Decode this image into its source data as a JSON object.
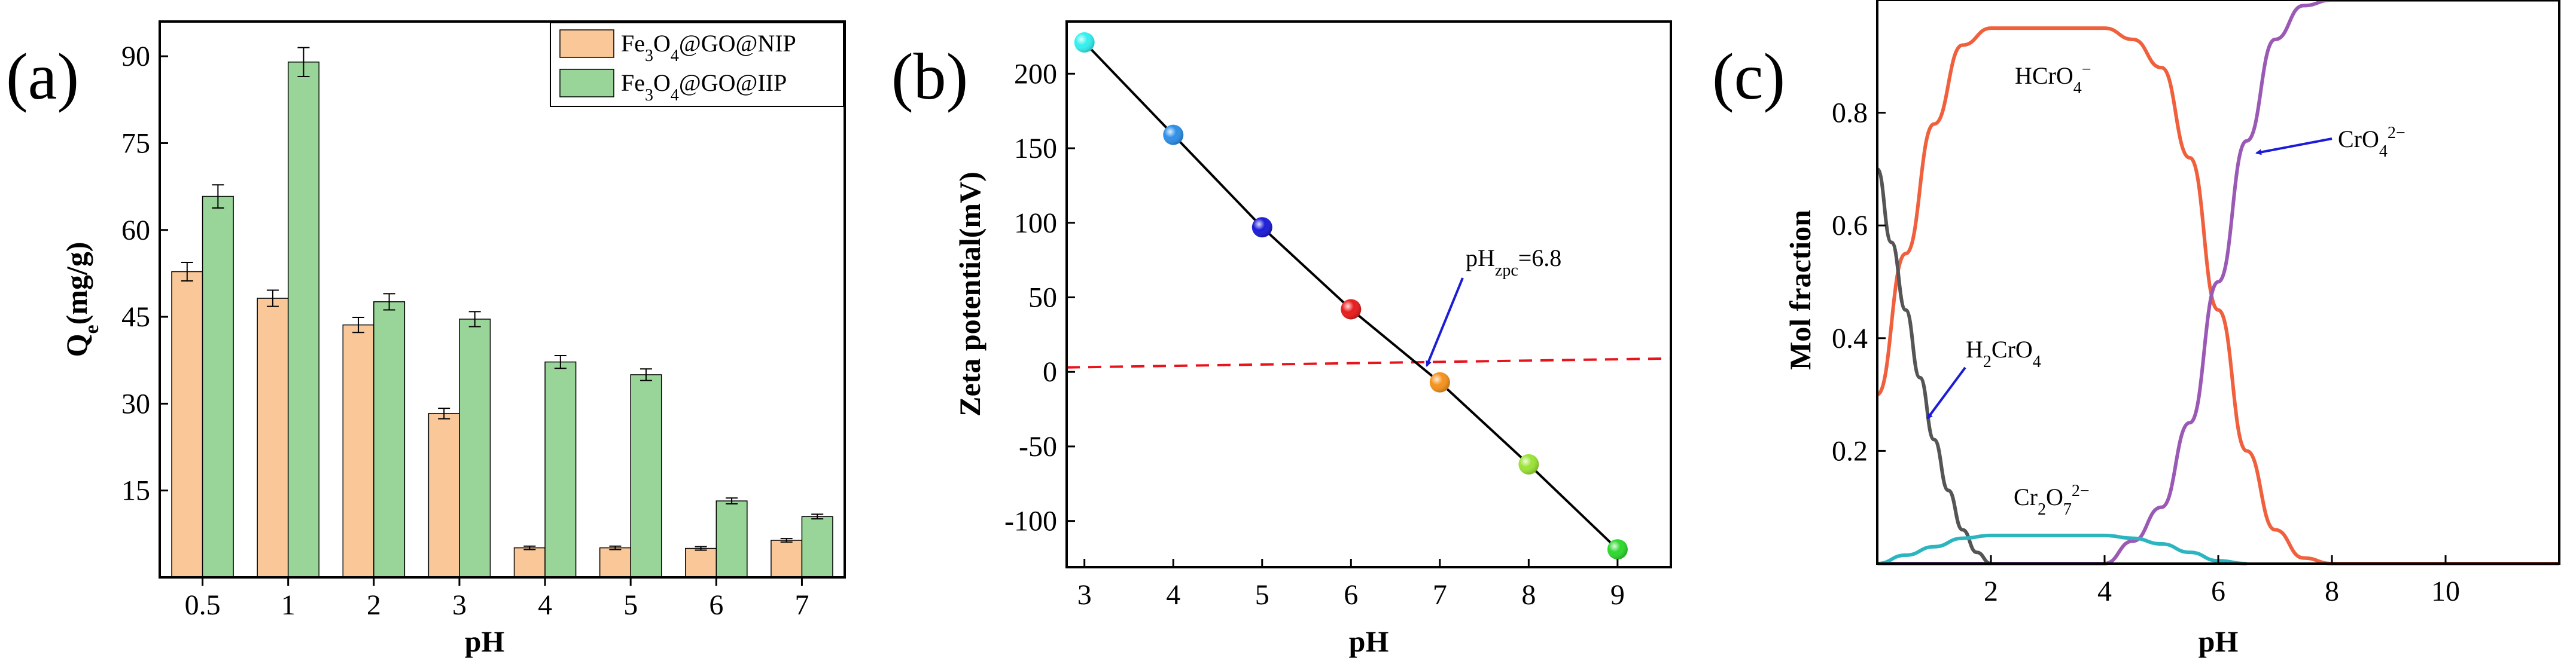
{
  "chart_data": [
    {
      "panel_label": "(a)",
      "type": "bar",
      "categories": [
        "0.5",
        "1",
        "2",
        "3",
        "4",
        "5",
        "6",
        "7"
      ],
      "series": [
        {
          "name_main": "Fe",
          "sub1": "3",
          "mid": "O",
          "sub2": "4",
          "suffix": "@GO@NIP",
          "color": "#FAC898",
          "values": [
            52.8,
            48.2,
            43.6,
            28.3,
            5.1,
            5.1,
            5.0,
            6.4
          ],
          "errors": [
            1.6,
            1.4,
            1.3,
            0.9,
            0.3,
            0.3,
            0.3,
            0.3
          ]
        },
        {
          "name_main": "Fe",
          "sub1": "3",
          "mid": "O",
          "sub2": "4",
          "suffix": "@GO@IIP",
          "color": "#99D599",
          "values": [
            65.8,
            89.0,
            47.6,
            44.6,
            37.2,
            35.0,
            13.2,
            10.5
          ],
          "errors": [
            2.0,
            2.5,
            1.4,
            1.3,
            1.1,
            1.0,
            0.5,
            0.4
          ]
        }
      ],
      "xlabel": "pH",
      "ylabel": {
        "main": "Q",
        "sub": "e",
        "rest": "(mg/g)"
      },
      "ylim": [
        0,
        96
      ],
      "yticks": [
        "15",
        "30",
        "45",
        "60",
        "75",
        "90"
      ],
      "legend": "top-right"
    },
    {
      "panel_label": "(b)",
      "type": "line",
      "x": [
        3,
        4,
        5,
        6,
        7,
        8,
        9
      ],
      "y": [
        221,
        159,
        97,
        42,
        -7,
        -62,
        -119
      ],
      "point_colors": [
        "#33F0F0",
        "#2E8FE8",
        "#1C1CD8",
        "#E81C1C",
        "#F5921E",
        "#9BE336",
        "#2ED82E"
      ],
      "line_color": "#000000",
      "reference_line": {
        "color": "#E8141C",
        "y_start": 3,
        "y_end": 9
      },
      "annotation": {
        "main": "pH",
        "sub": "zpc",
        "rest": "=6.8"
      },
      "xlabel": "pH",
      "ylabel": "Zeta potential(mV)",
      "xlim": [
        2.8,
        9.6
      ],
      "ylim": [
        -131,
        235
      ],
      "xticks": [
        "3",
        "4",
        "5",
        "6",
        "7",
        "8",
        "9"
      ],
      "yticks": [
        "-100",
        "-50",
        "0",
        "50",
        "100",
        "150",
        "200"
      ]
    },
    {
      "panel_label": "(c)",
      "type": "line",
      "xlim": [
        0,
        12
      ],
      "ylim": [
        0,
        1
      ],
      "xticks": [
        "2",
        "4",
        "6",
        "8",
        "10"
      ],
      "yticks": [
        "0.2",
        "0.4",
        "0.6",
        "0.8"
      ],
      "xlabel": "pH",
      "ylabel": "Mol fraction",
      "series": [
        {
          "name": "HCrO4-",
          "color": "#F0603C",
          "x": [
            0,
            0.5,
            1,
            1.5,
            2,
            2.5,
            3,
            3.5,
            4,
            4.5,
            5,
            5.5,
            6,
            6.5,
            7,
            7.5,
            8,
            9,
            10,
            11,
            12
          ],
          "y": [
            0.3,
            0.55,
            0.78,
            0.92,
            0.95,
            0.95,
            0.95,
            0.95,
            0.95,
            0.93,
            0.88,
            0.72,
            0.45,
            0.2,
            0.06,
            0.01,
            0.0,
            0.0,
            0.0,
            0.0,
            0.0
          ]
        },
        {
          "name": "CrO4 2-",
          "color": "#9B59B6",
          "x": [
            0,
            1,
            2,
            3,
            4,
            4.5,
            5,
            5.5,
            6,
            6.5,
            7,
            7.5,
            8,
            9,
            10,
            11,
            12
          ],
          "y": [
            0.0,
            0.0,
            0.0,
            0.0,
            0.0,
            0.04,
            0.1,
            0.25,
            0.5,
            0.75,
            0.93,
            0.99,
            1.0,
            1.0,
            1.0,
            1.0,
            1.0
          ]
        },
        {
          "name": "H2CrO4",
          "color": "#555555",
          "x": [
            0,
            0.25,
            0.5,
            0.75,
            1,
            1.25,
            1.5,
            1.75,
            2
          ],
          "y": [
            0.7,
            0.57,
            0.45,
            0.33,
            0.22,
            0.13,
            0.06,
            0.02,
            0.0
          ]
        },
        {
          "name": "Cr2O7 2-",
          "color": "#2BB5C0",
          "x": [
            0,
            0.5,
            1,
            1.5,
            2,
            2.5,
            3,
            3.5,
            4,
            4.5,
            5,
            5.5,
            6,
            6.5
          ],
          "y": [
            0.0,
            0.015,
            0.03,
            0.045,
            0.05,
            0.05,
            0.05,
            0.05,
            0.05,
            0.045,
            0.035,
            0.02,
            0.005,
            0.0
          ]
        }
      ],
      "annotations": {
        "hcro4": {
          "main": "HCrO",
          "sub": "4",
          "sup": "−"
        },
        "cro4": {
          "main": "CrO",
          "sub": "4",
          "sup": "2−"
        },
        "h2cro4": {
          "pre": "H",
          "sub1": "2",
          "mid": "CrO",
          "sub2": "4"
        },
        "cr2o7": {
          "pre": "Cr",
          "sub1": "2",
          "mid": "O",
          "sub2": "7",
          "sup": "2−"
        }
      }
    }
  ],
  "arrow_color": "#1C1CD8"
}
